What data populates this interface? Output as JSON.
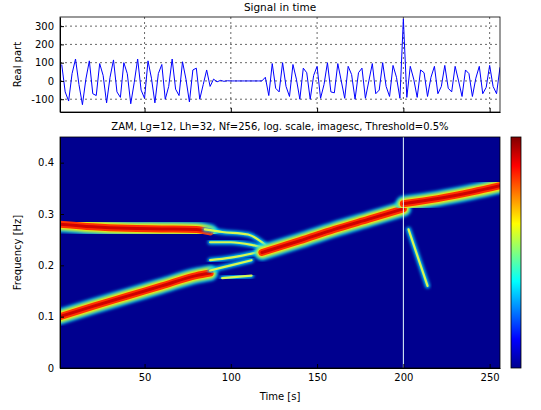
{
  "chart_data": [
    {
      "type": "line",
      "title": "Signal in time",
      "y_label": "Real part",
      "x": [
        2,
        4,
        6,
        8,
        10,
        12,
        14,
        16,
        18,
        20,
        22,
        24,
        26,
        28,
        30,
        32,
        34,
        36,
        38,
        40,
        42,
        44,
        46,
        48,
        50,
        52,
        54,
        56,
        58,
        60,
        62,
        64,
        66,
        68,
        70,
        72,
        74,
        76,
        78,
        80,
        82,
        84,
        86,
        88,
        90,
        92,
        94,
        96,
        98,
        100,
        102,
        104,
        106,
        108,
        110,
        112,
        114,
        116,
        118,
        120,
        122,
        124,
        126,
        128,
        130,
        132,
        134,
        136,
        138,
        140,
        142,
        144,
        146,
        148,
        150,
        152,
        154,
        156,
        158,
        160,
        162,
        164,
        166,
        168,
        170,
        172,
        174,
        176,
        178,
        180,
        182,
        184,
        186,
        188,
        190,
        192,
        194,
        196,
        198,
        200,
        202,
        204,
        206,
        208,
        210,
        212,
        214,
        216,
        218,
        220,
        222,
        224,
        226,
        228,
        230,
        232,
        234,
        236,
        238,
        240,
        242,
        244,
        246,
        248,
        250,
        252,
        254,
        256
      ],
      "series": [
        {
          "color": "#0000ff",
          "values": [
            90,
            -60,
            -110,
            40,
            120,
            -20,
            -130,
            10,
            110,
            -70,
            -80,
            95,
            30,
            -120,
            20,
            115,
            -60,
            -90,
            100,
            40,
            -125,
            -10,
            120,
            -50,
            -95,
            110,
            15,
            -120,
            40,
            90,
            -100,
            -30,
            120,
            -45,
            -80,
            105,
            10,
            -115,
            60,
            70,
            -100,
            -20,
            60,
            -30,
            10,
            -5,
            3,
            -2,
            1,
            0,
            0,
            0,
            0,
            0,
            0,
            0,
            0,
            0,
            0,
            20,
            -80,
            95,
            -40,
            -60,
            100,
            -30,
            -85,
            90,
            10,
            -100,
            70,
            45,
            -100,
            30,
            80,
            -95,
            -20,
            100,
            -60,
            -65,
            95,
            0,
            -95,
            80,
            35,
            -100,
            45,
            70,
            -95,
            0,
            95,
            -70,
            -50,
            100,
            -30,
            -85,
            85,
            20,
            -95,
            340,
            -90,
            80,
            10,
            -90,
            60,
            45,
            -85,
            20,
            80,
            -70,
            -30,
            85,
            -40,
            -60,
            80,
            0,
            -85,
            60,
            40,
            -85,
            15,
            80,
            -70,
            -35,
            85,
            -30,
            -70,
            75
          ]
        }
      ],
      "xlim": [
        1,
        256
      ],
      "ylim": [
        -170,
        350
      ],
      "xticks": [
        50,
        100,
        150,
        200,
        250
      ],
      "yticks": [
        -100,
        0,
        100,
        200,
        300
      ],
      "grid": true,
      "tick_labels": "y"
    },
    {
      "type": "time_frequency",
      "title": "ZAM, Lg=12, Lh=32, Nf=256, log. scale, imagesc, Threshold=0.5%",
      "x_label": "Time [s]",
      "y_label": "Frequency [Hz]",
      "series": [
        {
          "line_style": "solid",
          "x": [
            1,
            20,
            40,
            60,
            80,
            88
          ],
          "values": [
            0.28,
            0.275,
            0.272,
            0.271,
            0.27,
            0.265
          ]
        },
        {
          "line_style": "solid",
          "x": [
            1,
            20,
            40,
            60,
            80,
            88
          ],
          "values": [
            0.1,
            0.12,
            0.14,
            0.16,
            0.18,
            0.185
          ]
        },
        {
          "line_style": "thin",
          "x": [
            85,
            95,
            110,
            120
          ],
          "values": [
            0.27,
            0.265,
            0.26,
            0.24
          ]
        },
        {
          "line_style": "thin",
          "x": [
            88,
            100,
            112,
            122
          ],
          "values": [
            0.245,
            0.245,
            0.24,
            0.232
          ]
        },
        {
          "line_style": "thin",
          "x": [
            88,
            100,
            115
          ],
          "values": [
            0.21,
            0.215,
            0.225
          ]
        },
        {
          "line_style": "thin",
          "x": [
            88,
            100,
            112
          ],
          "values": [
            0.19,
            0.2,
            0.21
          ]
        },
        {
          "line_style": "thin",
          "x": [
            95,
            105,
            112
          ],
          "values": [
            0.175,
            0.178,
            0.18
          ]
        },
        {
          "line_style": "solid",
          "x": [
            118,
            140,
            160,
            180,
            200
          ],
          "values": [
            0.225,
            0.248,
            0.27,
            0.29,
            0.31
          ]
        },
        {
          "line_style": "solid",
          "x": [
            200,
            220,
            240,
            256
          ],
          "values": [
            0.32,
            0.33,
            0.343,
            0.355
          ]
        },
        {
          "line_style": "thin",
          "x": [
            203,
            208,
            214
          ],
          "values": [
            0.27,
            0.22,
            0.16
          ]
        },
        {
          "line_style": "impulse",
          "x": [
            200,
            200
          ],
          "values": [
            0,
            0.45
          ]
        }
      ],
      "xlim": [
        1,
        256
      ],
      "ylim": [
        0,
        0.45
      ],
      "xticks": [
        50,
        100,
        150,
        200,
        250
      ],
      "yticks": [
        0,
        0.1,
        0.2,
        0.3,
        0.4
      ],
      "color_range": [
        0,
        1
      ]
    }
  ]
}
